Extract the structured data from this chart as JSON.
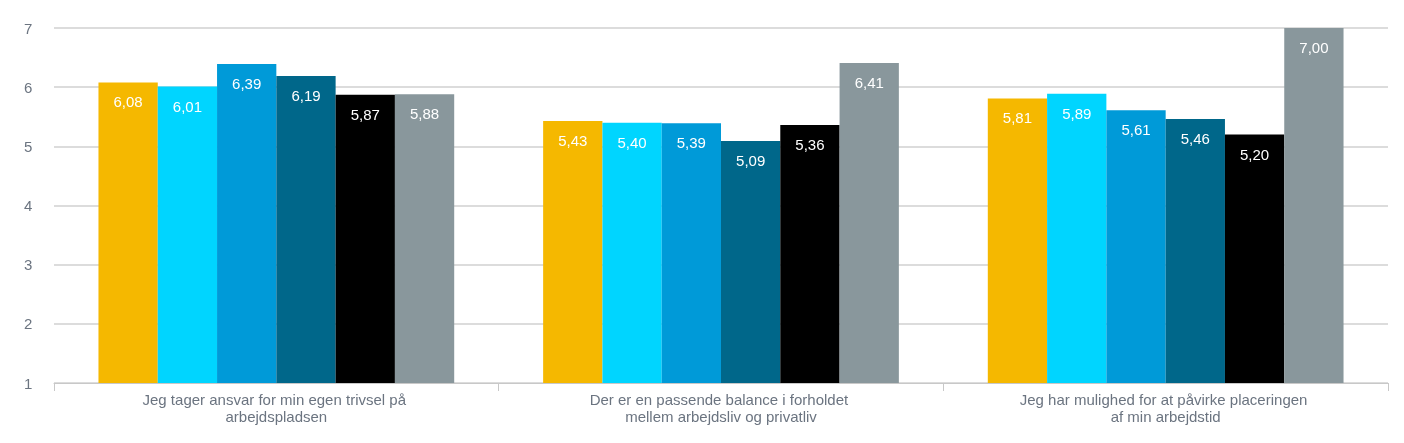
{
  "chart_data": {
    "type": "bar",
    "categories": [
      "Jeg tager ansvar for min egen trivsel på arbejdspladsen",
      "Der er en passende balance i forholdet mellem arbejdsliv og privatliv",
      "Jeg har mulighed for at påvirke placeringen af min arbejdstid"
    ],
    "series": [
      {
        "color": "#f5b800",
        "values": [
          6.08,
          5.43,
          5.81
        ]
      },
      {
        "color": "#00d5ff",
        "values": [
          6.01,
          5.4,
          5.89
        ]
      },
      {
        "color": "#009ad8",
        "values": [
          6.39,
          5.39,
          5.61
        ]
      },
      {
        "color": "#00678a",
        "values": [
          6.19,
          5.09,
          5.46
        ]
      },
      {
        "color": "#000000",
        "values": [
          5.87,
          5.36,
          5.2
        ]
      },
      {
        "color": "#89979c",
        "values": [
          5.88,
          6.41,
          7.0
        ]
      }
    ],
    "value_labels": [
      [
        "6,08",
        "5,43",
        "5,81"
      ],
      [
        "6,01",
        "5,40",
        "5,89"
      ],
      [
        "6,39",
        "5,39",
        "5,61"
      ],
      [
        "6,19",
        "5,09",
        "5,46"
      ],
      [
        "5,87",
        "5,36",
        "5,20"
      ],
      [
        "5,88",
        "6,41",
        "7,00"
      ]
    ],
    "ylim": [
      1,
      7
    ],
    "yticks": [
      1,
      2,
      3,
      4,
      5,
      6,
      7
    ],
    "grid": "y"
  }
}
